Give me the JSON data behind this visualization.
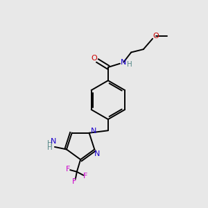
{
  "bg_color": "#e8e8e8",
  "black": "#000000",
  "blue": "#1a00cc",
  "red": "#cc0000",
  "magenta": "#cc00cc",
  "teal": "#558888",
  "figsize": [
    3.0,
    3.0
  ],
  "dpi": 100,
  "xlim": [
    0,
    10
  ],
  "ylim": [
    0,
    10
  ]
}
